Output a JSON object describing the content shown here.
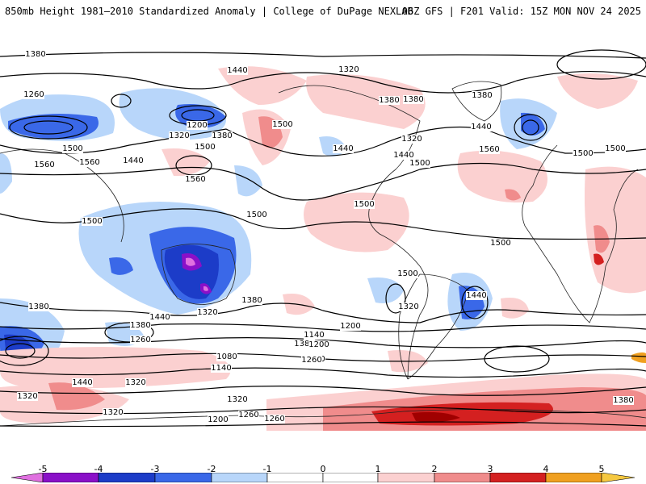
{
  "header": {
    "title_left": "850mb Height 1981–2010 Standardized Anomaly | College of DuPage NEXLAB",
    "title_right": "06Z GFS | F201 Valid: 15Z MON NOV 24 2025"
  },
  "map": {
    "contour_labels": [
      "1380",
      "1440",
      "1320",
      "1260",
      "1380",
      "1200",
      "1320",
      "1380",
      "1500",
      "1440",
      "1320",
      "1380",
      "1500",
      "1380",
      "1560",
      "1560",
      "1440",
      "1500",
      "1560",
      "1440",
      "1500",
      "1560",
      "1500",
      "1500",
      "1500",
      "1500",
      "1440",
      "1500",
      "1380",
      "1440",
      "1500",
      "1500",
      "1440",
      "1320",
      "1380",
      "1380",
      "1320",
      "1260",
      "1200",
      "1140",
      "1200",
      "1380",
      "1200",
      "1260",
      "1080",
      "1140",
      "1200",
      "1260",
      "1440",
      "1320",
      "1320",
      "1320",
      "1260",
      "1200",
      "1260",
      "1320",
      "1380"
    ],
    "colors": {
      "neg5": "#e070e0",
      "neg4": "#8a10c8",
      "neg3": "#1c3cc8",
      "neg2": "#3a68e8",
      "neg1": "#b8d6fa",
      "pos1": "#fbd0d0",
      "pos2": "#f08c8c",
      "pos3": "#d42020",
      "pos4": "#a00000",
      "pos5": "#f0a020"
    }
  },
  "colorbar": {
    "ticks": [
      "-5",
      "-4",
      "-3",
      "-2",
      "-1",
      "0",
      "1",
      "2",
      "3",
      "4",
      "5"
    ]
  }
}
